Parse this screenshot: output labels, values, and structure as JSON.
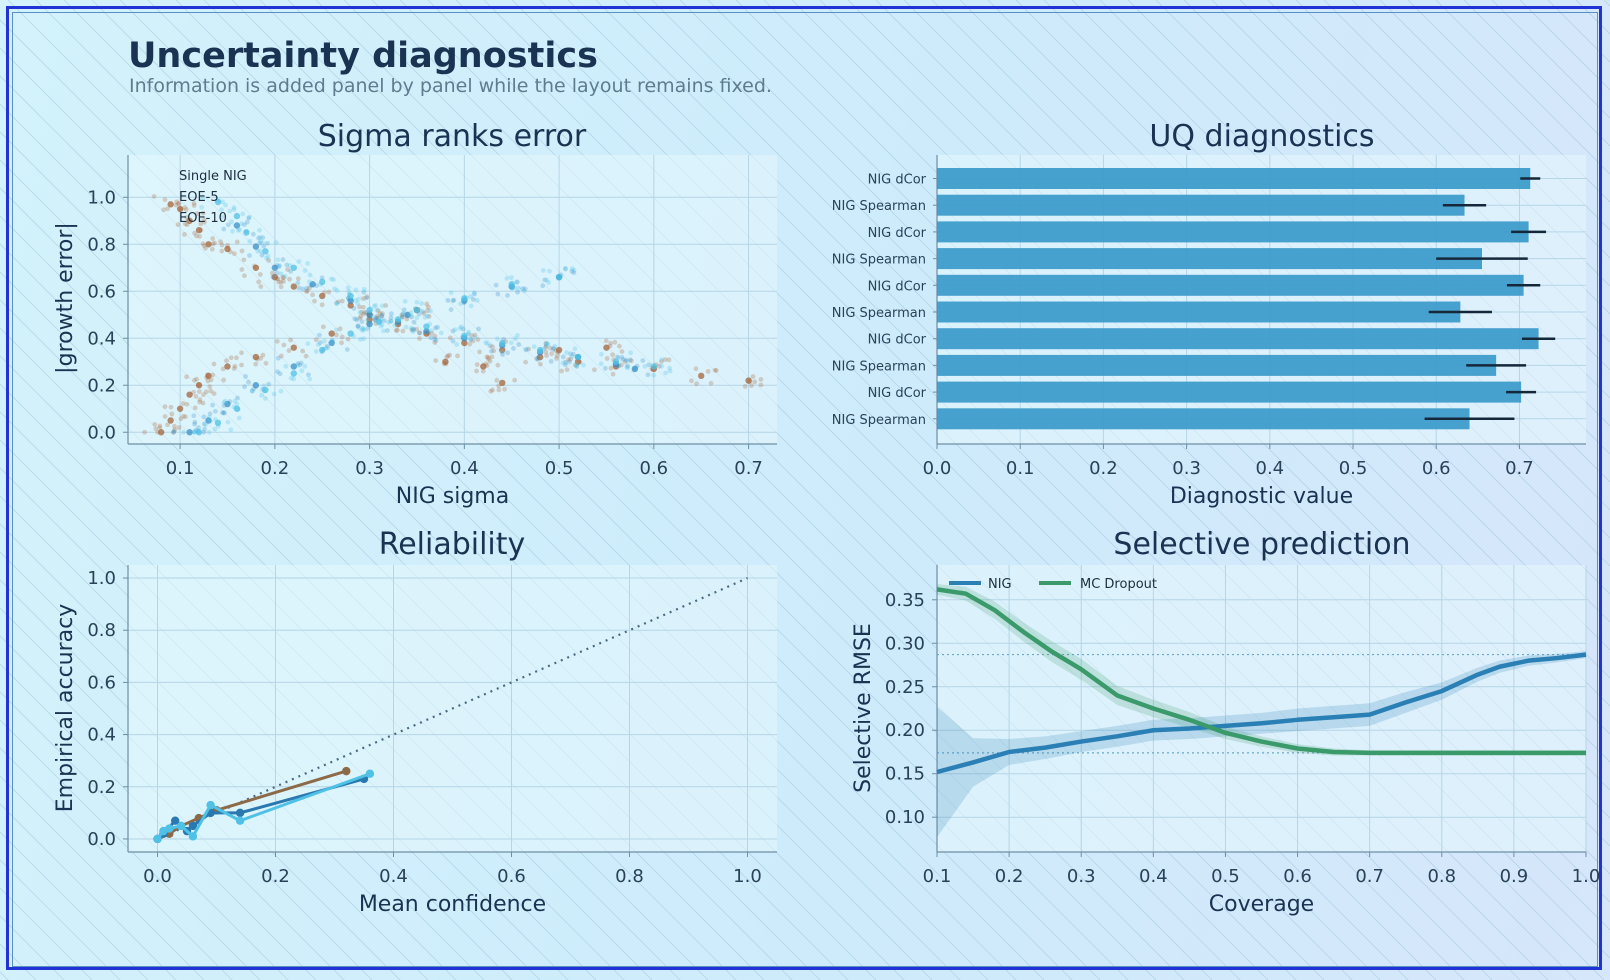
{
  "page": {
    "title": "Uncertainty diagnostics",
    "subtitle": "Information is added panel by panel while the layout remains fixed."
  },
  "colors": {
    "title": "#1b3352",
    "subtitle": "#5f7c8f",
    "axis_text": "#2a4258",
    "grid": "#b6d5e6",
    "brown": "#a6643a",
    "blue_light": "#4fc1e6",
    "blue_dark": "#3a90c7",
    "bar": "#3a9acb",
    "nig_line": "#2a7fb5",
    "mc_line": "#3a9a6a",
    "frame": "#2233d6"
  },
  "chart_data": [
    {
      "id": "sigma",
      "type": "scatter",
      "title": "Sigma ranks error",
      "xlabel": "NIG sigma",
      "ylabel": "|growth error|",
      "xlim": [
        0.045,
        0.73
      ],
      "ylim": [
        -0.05,
        1.18
      ],
      "xticks": [
        "0.1",
        "0.2",
        "0.3",
        "0.4",
        "0.5",
        "0.6",
        "0.7"
      ],
      "yticks": [
        "0.0",
        "0.2",
        "0.4",
        "0.6",
        "0.8",
        "1.0"
      ],
      "grid": true,
      "legend": {
        "placement": "top-left",
        "entries": [
          "Single NIG",
          "EOE-5",
          "EOE-10"
        ]
      },
      "series": [
        {
          "name": "Single NIG",
          "color": "#a6643a",
          "points": [
            [
              0.09,
              0.97
            ],
            [
              0.1,
              0.95
            ],
            [
              0.11,
              0.9
            ],
            [
              0.12,
              0.86
            ],
            [
              0.13,
              0.8
            ],
            [
              0.15,
              0.78
            ],
            [
              0.18,
              0.7
            ],
            [
              0.2,
              0.66
            ],
            [
              0.22,
              0.62
            ],
            [
              0.25,
              0.58
            ],
            [
              0.28,
              0.54
            ],
            [
              0.3,
              0.5
            ],
            [
              0.33,
              0.46
            ],
            [
              0.36,
              0.42
            ],
            [
              0.4,
              0.38
            ],
            [
              0.44,
              0.35
            ],
            [
              0.48,
              0.32
            ],
            [
              0.52,
              0.3
            ],
            [
              0.56,
              0.28
            ],
            [
              0.6,
              0.27
            ],
            [
              0.65,
              0.24
            ],
            [
              0.7,
              0.22
            ],
            [
              0.08,
              0.0
            ],
            [
              0.09,
              0.05
            ],
            [
              0.1,
              0.1
            ],
            [
              0.11,
              0.16
            ],
            [
              0.12,
              0.2
            ],
            [
              0.13,
              0.24
            ],
            [
              0.15,
              0.28
            ],
            [
              0.18,
              0.32
            ],
            [
              0.22,
              0.36
            ],
            [
              0.26,
              0.42
            ],
            [
              0.3,
              0.48
            ],
            [
              0.35,
              0.52
            ],
            [
              0.38,
              0.3
            ],
            [
              0.42,
              0.28
            ],
            [
              0.44,
              0.21
            ],
            [
              0.5,
              0.35
            ],
            [
              0.55,
              0.36
            ]
          ]
        },
        {
          "name": "EOE-5",
          "color": "#3a90c7",
          "points": [
            [
              0.16,
              0.88
            ],
            [
              0.18,
              0.79
            ],
            [
              0.2,
              0.7
            ],
            [
              0.24,
              0.63
            ],
            [
              0.28,
              0.56
            ],
            [
              0.3,
              0.5
            ],
            [
              0.33,
              0.47
            ],
            [
              0.36,
              0.43
            ],
            [
              0.4,
              0.4
            ],
            [
              0.44,
              0.37
            ],
            [
              0.48,
              0.34
            ],
            [
              0.52,
              0.32
            ],
            [
              0.56,
              0.29
            ],
            [
              0.58,
              0.27
            ],
            [
              0.11,
              0.0
            ],
            [
              0.13,
              0.05
            ],
            [
              0.15,
              0.12
            ],
            [
              0.18,
              0.2
            ],
            [
              0.22,
              0.28
            ],
            [
              0.26,
              0.38
            ],
            [
              0.3,
              0.46
            ],
            [
              0.34,
              0.5
            ],
            [
              0.4,
              0.56
            ],
            [
              0.45,
              0.62
            ],
            [
              0.5,
              0.66
            ]
          ]
        },
        {
          "name": "EOE-10",
          "color": "#4fc1e6",
          "points": [
            [
              0.14,
              0.98
            ],
            [
              0.16,
              0.92
            ],
            [
              0.17,
              0.85
            ],
            [
              0.19,
              0.77
            ],
            [
              0.22,
              0.7
            ],
            [
              0.25,
              0.64
            ],
            [
              0.28,
              0.58
            ],
            [
              0.3,
              0.52
            ],
            [
              0.33,
              0.48
            ],
            [
              0.36,
              0.45
            ],
            [
              0.4,
              0.41
            ],
            [
              0.44,
              0.38
            ],
            [
              0.48,
              0.35
            ],
            [
              0.52,
              0.32
            ],
            [
              0.56,
              0.3
            ],
            [
              0.6,
              0.28
            ],
            [
              0.12,
              0.0
            ],
            [
              0.14,
              0.04
            ],
            [
              0.16,
              0.1
            ],
            [
              0.19,
              0.18
            ],
            [
              0.22,
              0.25
            ],
            [
              0.25,
              0.35
            ],
            [
              0.28,
              0.42
            ],
            [
              0.31,
              0.47
            ],
            [
              0.35,
              0.52
            ],
            [
              0.4,
              0.57
            ],
            [
              0.45,
              0.63
            ],
            [
              0.5,
              0.66
            ]
          ]
        }
      ]
    },
    {
      "id": "uq",
      "type": "bar",
      "orientation": "horizontal",
      "title": "UQ diagnostics",
      "xlabel": "Diagnostic value",
      "ylabel": "",
      "xlim": [
        0.0,
        0.78
      ],
      "xticks": [
        "0.0",
        "0.1",
        "0.2",
        "0.3",
        "0.4",
        "0.5",
        "0.6",
        "0.7"
      ],
      "grid": true,
      "categories": [
        "NIG dCor",
        "NIG Spearman",
        "NIG dCor",
        "NIG Spearman",
        "NIG dCor",
        "NIG Spearman",
        "NIG dCor",
        "NIG Spearman",
        "NIG dCor",
        "NIG Spearman"
      ],
      "values": [
        0.713,
        0.634,
        0.711,
        0.655,
        0.705,
        0.629,
        0.723,
        0.672,
        0.702,
        0.64
      ],
      "errors": [
        0.012,
        0.026,
        0.021,
        0.055,
        0.02,
        0.038,
        0.02,
        0.036,
        0.018,
        0.054
      ]
    },
    {
      "id": "reliability",
      "type": "line",
      "title": "Reliability",
      "xlabel": "Mean confidence",
      "ylabel": "Empirical accuracy",
      "xlim": [
        -0.05,
        1.05
      ],
      "ylim": [
        -0.05,
        1.05
      ],
      "xticks": [
        "0.0",
        "0.2",
        "0.4",
        "0.6",
        "0.8",
        "1.0"
      ],
      "yticks": [
        "0.0",
        "0.2",
        "0.4",
        "0.6",
        "0.8",
        "1.0"
      ],
      "grid": true,
      "reference": {
        "x": [
          0,
          1
        ],
        "y": [
          0,
          1
        ],
        "style": "dotted"
      },
      "series": [
        {
          "color": "#8c6a48",
          "x": [
            0.0,
            0.02,
            0.04,
            0.07,
            0.1,
            0.32
          ],
          "y": [
            0.0,
            0.02,
            0.05,
            0.08,
            0.11,
            0.26
          ]
        },
        {
          "color": "#2a78b0",
          "x": [
            0.0,
            0.01,
            0.03,
            0.05,
            0.06,
            0.09,
            0.14,
            0.35
          ],
          "y": [
            0.0,
            0.02,
            0.07,
            0.03,
            0.05,
            0.1,
            0.1,
            0.23
          ]
        },
        {
          "color": "#4fc1e6",
          "x": [
            0.0,
            0.01,
            0.02,
            0.04,
            0.06,
            0.09,
            0.14,
            0.36
          ],
          "y": [
            0.0,
            0.03,
            0.04,
            0.05,
            0.01,
            0.13,
            0.07,
            0.25
          ]
        }
      ]
    },
    {
      "id": "selective",
      "type": "line",
      "title": "Selective prediction",
      "xlabel": "Coverage",
      "ylabel": "Selective RMSE",
      "xlim": [
        0.1,
        1.0
      ],
      "ylim": [
        0.06,
        0.39
      ],
      "xticks": [
        "0.1",
        "0.2",
        "0.3",
        "0.4",
        "0.5",
        "0.6",
        "0.7",
        "0.8",
        "0.9",
        "1.0"
      ],
      "yticks": [
        "0.10",
        "0.15",
        "0.20",
        "0.25",
        "0.30",
        "0.35"
      ],
      "grid": true,
      "legend": {
        "placement": "top-left"
      },
      "hlines": [
        0.287,
        0.174
      ],
      "series": [
        {
          "name": "NIG",
          "color": "#2a7fb5",
          "x": [
            0.1,
            0.15,
            0.2,
            0.25,
            0.3,
            0.35,
            0.4,
            0.45,
            0.5,
            0.55,
            0.6,
            0.65,
            0.7,
            0.75,
            0.8,
            0.85,
            0.88,
            0.92,
            0.96,
            1.0
          ],
          "y": [
            0.152,
            0.163,
            0.175,
            0.18,
            0.187,
            0.193,
            0.2,
            0.202,
            0.205,
            0.208,
            0.212,
            0.215,
            0.218,
            0.232,
            0.245,
            0.264,
            0.273,
            0.28,
            0.283,
            0.287
          ],
          "band": [
            0.075,
            0.028,
            0.015,
            0.013,
            0.012,
            0.012,
            0.012,
            0.012,
            0.012,
            0.012,
            0.013,
            0.013,
            0.013,
            0.012,
            0.01,
            0.008,
            0.007,
            0.006,
            0.005,
            0.004
          ]
        },
        {
          "name": "MC Dropout",
          "color": "#3a9a6a",
          "x": [
            0.1,
            0.14,
            0.18,
            0.22,
            0.26,
            0.3,
            0.35,
            0.4,
            0.45,
            0.5,
            0.55,
            0.6,
            0.65,
            0.7,
            0.8,
            0.9,
            1.0
          ],
          "y": [
            0.362,
            0.357,
            0.338,
            0.313,
            0.29,
            0.27,
            0.24,
            0.225,
            0.212,
            0.197,
            0.187,
            0.179,
            0.175,
            0.174,
            0.174,
            0.174,
            0.174
          ],
          "band": [
            0.006,
            0.008,
            0.01,
            0.011,
            0.012,
            0.012,
            0.011,
            0.01,
            0.009,
            0.007,
            0.006,
            0.005,
            0.004,
            0.003,
            0.003,
            0.003,
            0.003
          ]
        }
      ]
    }
  ]
}
